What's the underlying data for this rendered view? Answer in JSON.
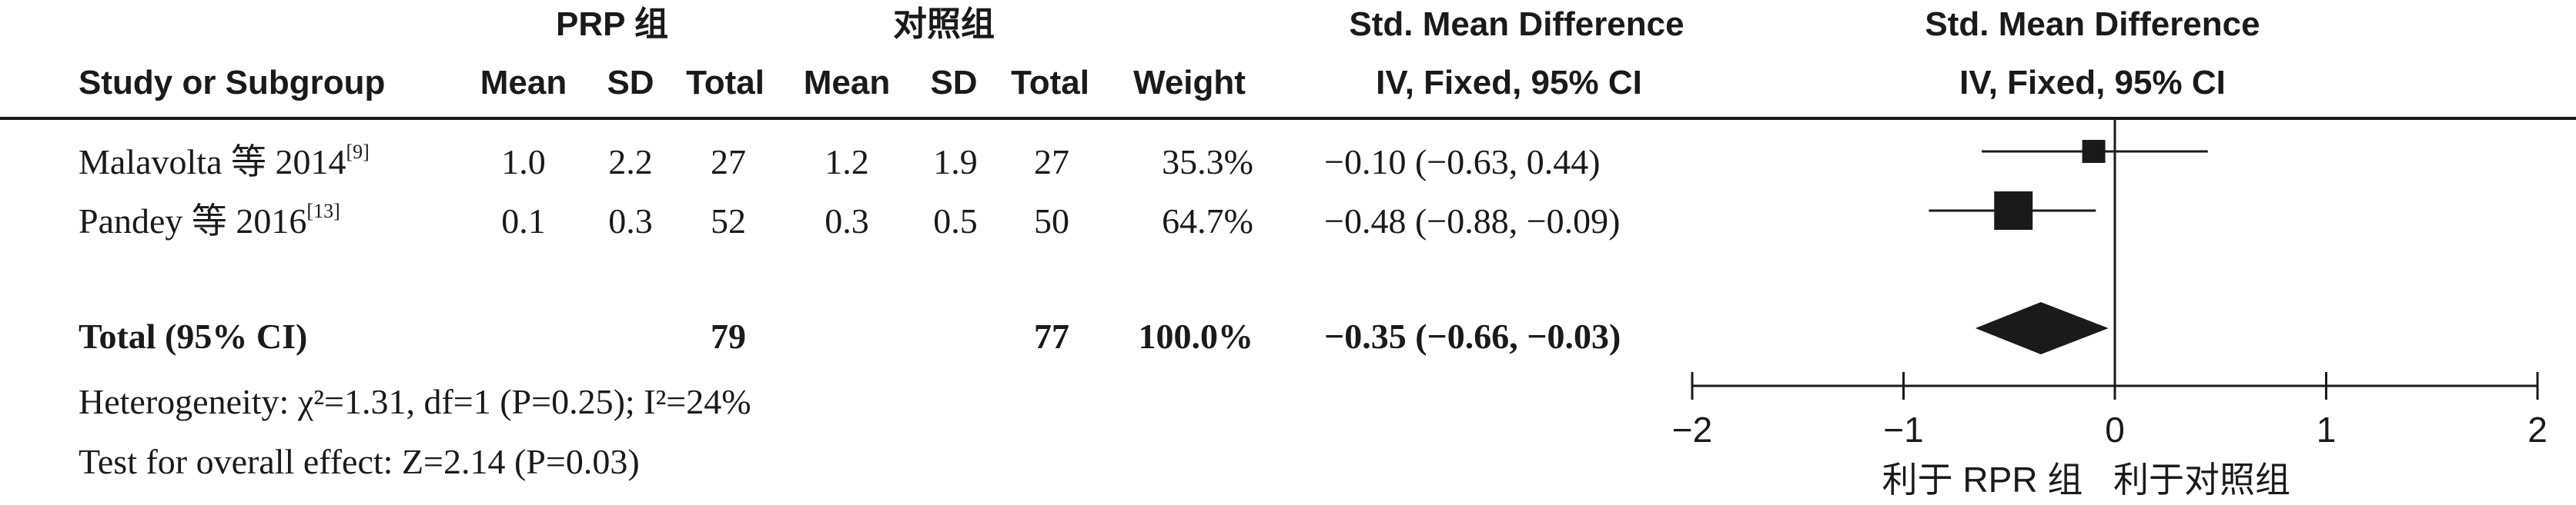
{
  "groups": {
    "experimental": "PRP 组",
    "control": "对照组"
  },
  "effect_header": {
    "line1": "Std. Mean Difference",
    "line2": "IV, Fixed, 95% CI"
  },
  "plot_header": {
    "line1": "Std. Mean Difference",
    "line2": "IV, Fixed, 95% CI"
  },
  "columns": {
    "study": "Study or Subgroup",
    "mean": "Mean",
    "sd": "SD",
    "total": "Total",
    "weight": "Weight"
  },
  "studies": [
    {
      "name": "Malavolta 等 2014",
      "ref": "[9]",
      "mean1": "1.0",
      "sd1": "2.2",
      "total1": "27",
      "mean2": "1.2",
      "sd2": "1.9",
      "total2": "27",
      "weight": "35.3%",
      "ci_text": "−0.10 (−0.63, 0.44)"
    },
    {
      "name": "Pandey 等 2016",
      "ref": "[13]",
      "mean1": "0.1",
      "sd1": "0.3",
      "total1": "52",
      "mean2": "0.3",
      "sd2": "0.5",
      "total2": "50",
      "weight": "64.7%",
      "ci_text": "−0.48 (−0.88, −0.09)"
    }
  ],
  "total_row": {
    "label": "Total (95% CI)",
    "total1": "79",
    "total2": "77",
    "weight": "100.0%",
    "ci_text": "−0.35 (−0.66, −0.03)"
  },
  "footer": {
    "heterogeneity": "Heterogeneity: χ²=1.31, df=1 (P=0.25); I²=24%",
    "overall": "Test for overall effect: Z=2.14 (P=0.03)"
  },
  "axis_labels": {
    "favours_left": "利于 RPR 组",
    "favours_right": "利于对照组"
  },
  "chart_data": {
    "type": "forest",
    "xlim": [
      -2,
      2
    ],
    "xticks": [
      "−2",
      "−1",
      "0",
      "1",
      "2"
    ],
    "xtick_values": [
      -2,
      -1,
      0,
      1,
      2
    ],
    "null_line": 0,
    "studies": [
      {
        "estimate": -0.1,
        "lower": -0.63,
        "upper": 0.44,
        "weight": 35.3
      },
      {
        "estimate": -0.48,
        "lower": -0.88,
        "upper": -0.09,
        "weight": 64.7
      }
    ],
    "pooled": {
      "estimate": -0.35,
      "lower": -0.66,
      "upper": -0.03
    }
  }
}
